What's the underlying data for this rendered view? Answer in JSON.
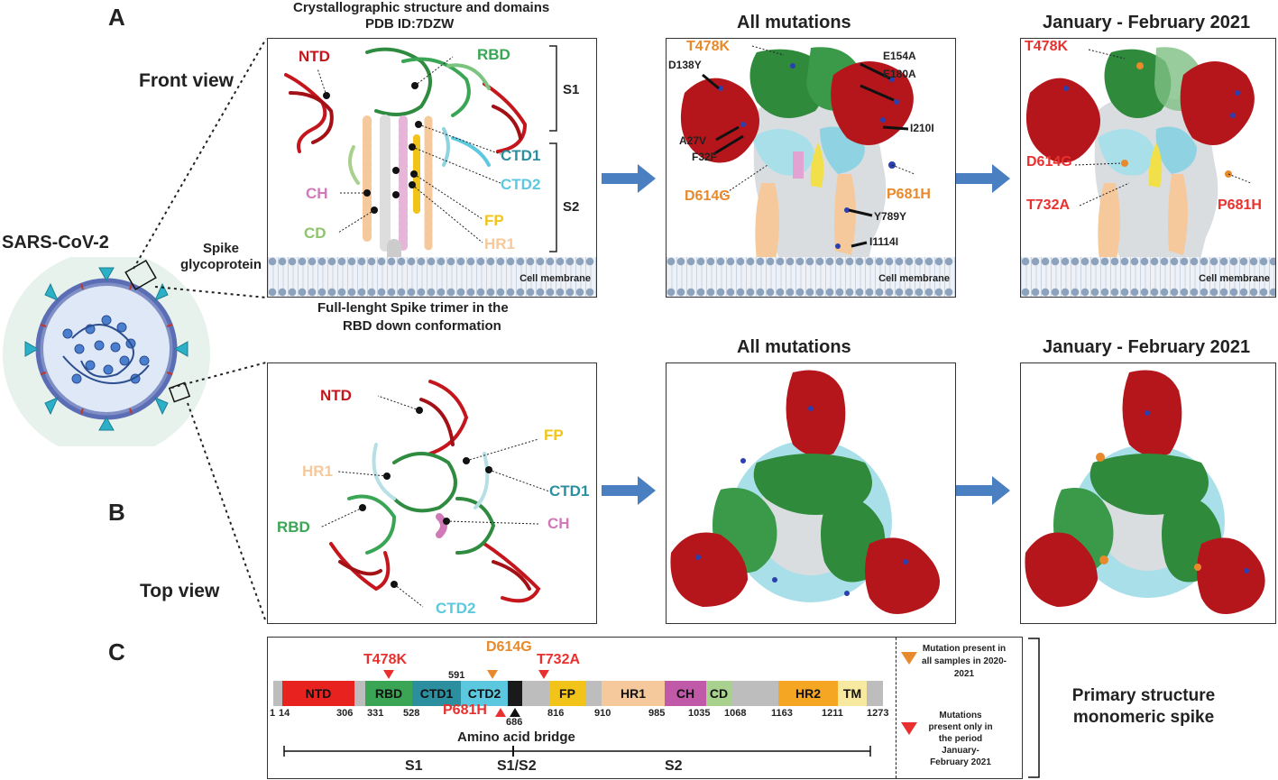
{
  "panel_letters": {
    "a": "A",
    "b": "B",
    "c": "C"
  },
  "virus": {
    "title": "SARS-CoV-2",
    "spike_label": "Spike glycoprotein"
  },
  "views": {
    "front": "Front view",
    "top": "Top view"
  },
  "crystal": {
    "title_line1": "Crystallographic structure and domains",
    "title_line2": "PDB ID:7DZW",
    "caption_line1": "Full-lenght Spike trimer in the",
    "caption_line2": "RBD down conformation"
  },
  "front_domains": {
    "ntd": "NTD",
    "rbd": "RBD",
    "s1": "S1",
    "s2": "S2",
    "ctd1": "CTD1",
    "ctd2": "CTD2",
    "ch": "CH",
    "cd": "CD",
    "fp": "FP",
    "hr1": "HR1"
  },
  "top_domains": {
    "ntd": "NTD",
    "fp": "FP",
    "hr1": "HR1",
    "ctd1": "CTD1",
    "rbd": "RBD",
    "ch": "CH",
    "ctd2": "CTD2"
  },
  "membrane_label": "Cell membrane",
  "all_mutations_title": "All mutations",
  "jan_feb_title": "January - February 2021",
  "all_mut_labels": {
    "t478k": "T478K",
    "d138y": "D138Y",
    "e154a": "E154A",
    "e180a": "E180A",
    "a27v": "A27V",
    "f32f": "F32F",
    "i210i": "I210I",
    "d614g": "D614G",
    "p681h": "P681H",
    "y789y": "Y789Y",
    "i1114i": "I1114I"
  },
  "jan_mut_labels": {
    "t478k": "T478K",
    "d614g": "D614G",
    "t732a": "T732A",
    "p681h": "P681H"
  },
  "primary": {
    "domains": [
      {
        "name": "NTD"
      },
      {
        "name": "RBD"
      },
      {
        "name": "CTD1"
      },
      {
        "name": "CTD2"
      },
      {
        "name": "FP"
      },
      {
        "name": "HR1"
      },
      {
        "name": "CH"
      },
      {
        "name": "CD"
      },
      {
        "name": "HR2"
      },
      {
        "name": "TM"
      }
    ],
    "numbers": [
      "1",
      "14",
      "306",
      "331",
      "528",
      "591",
      "686",
      "816",
      "910",
      "985",
      "1035",
      "1068",
      "1163",
      "1211",
      "1273"
    ],
    "mutations": {
      "t478k": "T478K",
      "d614g": "D614G",
      "t732a": "T732A",
      "p681h": "P681H"
    },
    "bridge_label": "Amino acid bridge",
    "regions": {
      "s1": "S1",
      "s1s2": "S1/S2",
      "s2": "S2"
    },
    "legend": {
      "orange": "Mutation present in all samples in 2020-2021",
      "red": "Mutations present only in the period January-February 2021"
    },
    "side_label": "Primary structure monomeric spike"
  },
  "colors": {
    "ntd": "#c4161c",
    "rbd": "#3aa655",
    "ctd1": "#2b8fa0",
    "ctd2": "#5bc8e0",
    "fp": "#f2c318",
    "hr1": "#f5c99b",
    "ch": "#d07ab8",
    "cd": "#a9d18e",
    "hr2": "#f5a623",
    "tm": "#f7e9a0",
    "gray": "#bdbdbd",
    "bridge": "#1a1a1a",
    "orange": "#e8892b",
    "red": "#e8312e",
    "arrow": "#4a7fc1"
  }
}
